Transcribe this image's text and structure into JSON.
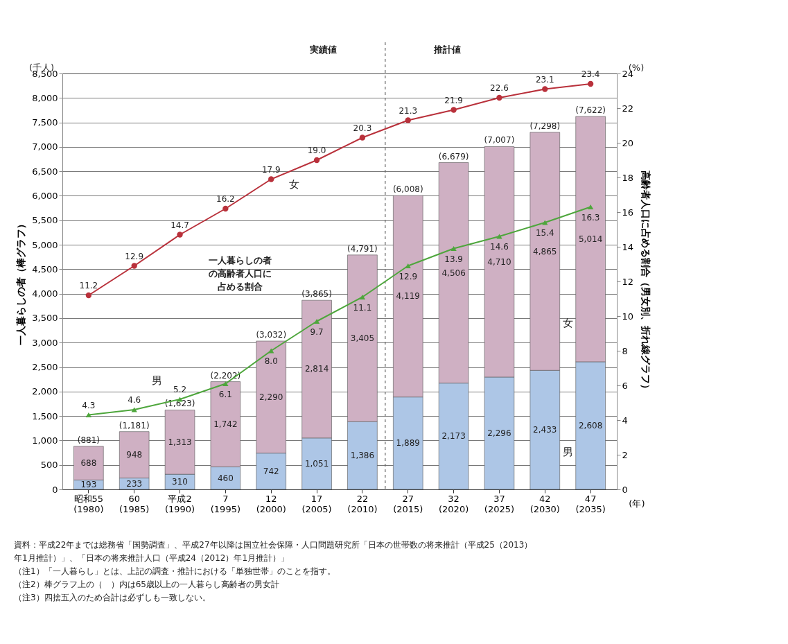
{
  "chart_data": {
    "type": "bar",
    "stacked": true,
    "legend": false,
    "grid": "y",
    "xlabel": "(年)",
    "ylabel": "一人暮らしの者（棒グラフ）",
    "y2label": "高齢者人口に占める割合（男女別、折れ線グラフ）",
    "categories": [
      "昭和55\n(1980)",
      "60\n(1985)",
      "平成2\n(1990)",
      "7\n(1995)",
      "12\n(2000)",
      "17\n(2005)",
      "22\n(2010)",
      "27\n(2015)",
      "32\n(2020)",
      "37\n(2025)",
      "42\n(2030)",
      "47\n(2035)"
    ],
    "series": [
      {
        "name": "男",
        "color": "#adc6e6",
        "values": [
          193,
          233,
          310,
          460,
          742,
          1051,
          1386,
          1889,
          2173,
          2296,
          2433,
          2608
        ],
        "value_labels": [
          "193",
          "233",
          "310",
          "460",
          "742",
          "1,051",
          "1,386",
          "1,889",
          "2,173",
          "2,296",
          "2,433",
          "2,608"
        ]
      },
      {
        "name": "女",
        "color": "#cfb0c3",
        "values": [
          688,
          948,
          1313,
          1742,
          2290,
          2814,
          3405,
          4119,
          4506,
          4710,
          4865,
          5014
        ],
        "value_labels": [
          "688",
          "948",
          "1,313",
          "1,742",
          "2,290",
          "2,814",
          "3,405",
          "4,119",
          "4,506",
          "4,710",
          "4,865",
          "5,014"
        ]
      },
      {
        "name": "女",
        "type": "line",
        "axis": "y2",
        "marker": "circle",
        "color": "#b9313b",
        "values": [
          11.2,
          12.9,
          14.7,
          16.2,
          17.9,
          19.0,
          20.3,
          21.3,
          21.9,
          22.6,
          23.1,
          23.4
        ],
        "value_labels": [
          "11.2",
          "12.9",
          "14.7",
          "16.2",
          "17.9",
          "19.0",
          "20.3",
          "21.3",
          "21.9",
          "22.6",
          "23.1",
          "23.4"
        ]
      },
      {
        "name": "男",
        "type": "line",
        "axis": "y2",
        "marker": "triangle",
        "color": "#4ea63c",
        "values": [
          4.3,
          4.6,
          5.2,
          6.1,
          8.0,
          9.7,
          11.1,
          12.9,
          13.9,
          14.6,
          15.4,
          16.3
        ],
        "value_labels": [
          "4.3",
          "4.6",
          "5.2",
          "6.1",
          "8.0",
          "9.7",
          "11.1",
          "12.9",
          "13.9",
          "14.6",
          "15.4",
          "16.3"
        ]
      }
    ],
    "totals": [
      "(881)",
      "(1,181)",
      "(1,623)",
      "(2,202)",
      "(3,032)",
      "(3,865)",
      "(4,791)",
      "(6,008)",
      "(6,679)",
      "(7,007)",
      "(7,298)",
      "(7,622)"
    ],
    "ylim": [
      0,
      8500
    ],
    "yticks": [
      0,
      500,
      {
        "value": 1000,
        "label": "1,000"
      },
      {
        "value": 1500,
        "label": "1,500"
      },
      {
        "value": 2000,
        "label": "2,000"
      },
      {
        "value": 2500,
        "label": "2,500"
      },
      {
        "value": 3000,
        "label": "3,000"
      },
      {
        "value": 3500,
        "label": "3,500"
      },
      {
        "value": 4000,
        "label": "4,000"
      },
      {
        "value": 4500,
        "label": "4,500"
      },
      {
        "value": 5000,
        "label": "5,000"
      },
      {
        "value": 5500,
        "label": "5,500"
      },
      {
        "value": 6000,
        "label": "6,000"
      },
      {
        "value": 6500,
        "label": "6,500"
      },
      {
        "value": 7000,
        "label": "7,000"
      },
      {
        "value": 7500,
        "label": "7,500"
      },
      {
        "value": 8000,
        "label": "8,000"
      },
      {
        "value": 8500,
        "label": "8,500"
      }
    ],
    "y2lim": [
      0,
      24
    ],
    "y2ticks": [
      0,
      2,
      4,
      6,
      8,
      10,
      12,
      14,
      16,
      18,
      20,
      22,
      24
    ],
    "ref_lines": [
      {
        "axis": "x",
        "value": "27\n(2015)",
        "line_style": "dashed",
        "color": "#666666"
      }
    ],
    "annotations": [
      "(千人)",
      "(%)",
      "実績値",
      "推計値",
      "一人暮らしの者の高齢者人口に占める割合",
      "資料：平成22年までは総務省「国勢調査」、平成27年以降は国立社会保障・人口問題研究所「日本の世帯数の将来推計（平成25（2013）年1月推計）」、「日本の将来推計人口（平成24（2012）年1月推計）」",
      "（注1）「一人暮らし」とは、上記の調査・推計における「単独世帯」のことを指す。",
      "（注2）棒グラフ上の（　）内は65歳以上の一人暮らし高齢者の男女計",
      "（注3）四捨五入のため合計は必ずしも一致しない。"
    ]
  }
}
